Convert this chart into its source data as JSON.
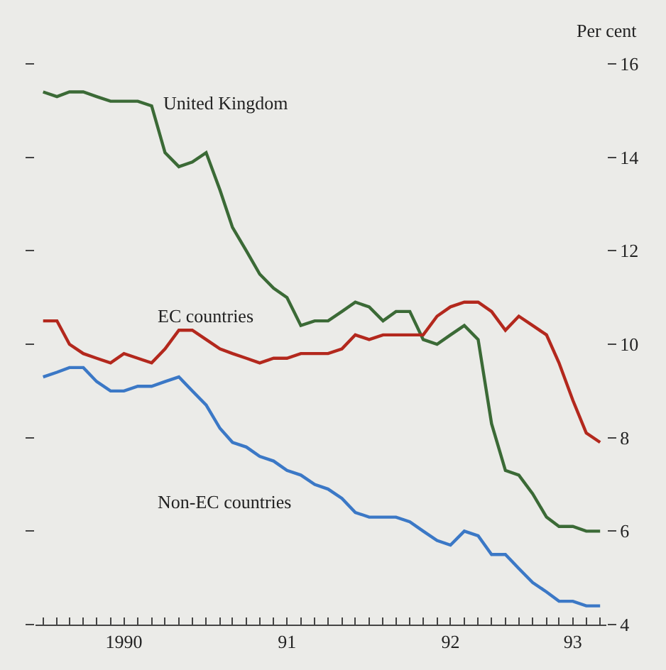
{
  "chart_data": {
    "type": "line",
    "ylabel": "Per cent",
    "x": [
      "1990-01",
      "1990-02",
      "1990-03",
      "1990-04",
      "1990-05",
      "1990-06",
      "1990-07",
      "1990-08",
      "1990-09",
      "1990-10",
      "1990-11",
      "1990-12",
      "1991-01",
      "1991-02",
      "1991-03",
      "1991-04",
      "1991-05",
      "1991-06",
      "1991-07",
      "1991-08",
      "1991-09",
      "1991-10",
      "1991-11",
      "1991-12",
      "1992-01",
      "1992-02",
      "1992-03",
      "1992-04",
      "1992-05",
      "1992-06",
      "1992-07",
      "1992-08",
      "1992-09",
      "1992-10",
      "1992-11",
      "1992-12",
      "1993-01",
      "1993-02",
      "1993-03",
      "1993-04",
      "1993-05",
      "1993-06"
    ],
    "series": [
      {
        "name": "United Kingdom",
        "color": "#3b6a36",
        "values": [
          15.4,
          15.3,
          15.4,
          15.4,
          15.3,
          15.2,
          15.2,
          15.2,
          15.1,
          14.1,
          13.8,
          13.9,
          14.1,
          13.3,
          12.5,
          12.0,
          11.5,
          11.2,
          11.0,
          10.4,
          10.5,
          10.5,
          10.7,
          10.9,
          10.8,
          10.5,
          10.7,
          10.7,
          10.1,
          10.0,
          10.2,
          10.4,
          10.1,
          8.3,
          7.3,
          7.2,
          6.8,
          6.3,
          6.1,
          6.1,
          6.0,
          6.0
        ]
      },
      {
        "name": "EC countries",
        "color": "#b3281d",
        "values": [
          10.5,
          10.5,
          10.0,
          9.8,
          9.7,
          9.6,
          9.8,
          9.7,
          9.6,
          9.9,
          10.3,
          10.3,
          10.1,
          9.9,
          9.8,
          9.7,
          9.6,
          9.7,
          9.7,
          9.8,
          9.8,
          9.8,
          9.9,
          10.2,
          10.1,
          10.2,
          10.2,
          10.2,
          10.2,
          10.6,
          10.8,
          10.9,
          10.9,
          10.7,
          10.3,
          10.6,
          10.4,
          10.2,
          9.6,
          8.8,
          8.1,
          7.9
        ]
      },
      {
        "name": "Non-EC countries",
        "color": "#3b78c6",
        "values": [
          9.3,
          9.4,
          9.5,
          9.5,
          9.2,
          9.0,
          9.0,
          9.1,
          9.1,
          9.2,
          9.3,
          9.0,
          8.7,
          8.2,
          7.9,
          7.8,
          7.6,
          7.5,
          7.3,
          7.2,
          7.0,
          6.9,
          6.7,
          6.4,
          6.3,
          6.3,
          6.3,
          6.2,
          6.0,
          5.8,
          5.7,
          6.0,
          5.9,
          5.5,
          5.5,
          5.2,
          4.9,
          4.7,
          4.5,
          4.5,
          4.4,
          4.4
        ]
      }
    ],
    "xlim": [
      "1989-12-15",
      "1993-06-15"
    ],
    "xticks": [
      {
        "value": "1990-07-01",
        "label": "1990"
      },
      {
        "value": "1991-07-01",
        "label": "91"
      },
      {
        "value": "1992-07-01",
        "label": "92"
      },
      {
        "value": "1993-04-01",
        "label": "93"
      }
    ],
    "ylim": [
      4,
      16
    ],
    "yticks": [
      4,
      6,
      8,
      10,
      12,
      14,
      16
    ],
    "grid": false,
    "legend": false,
    "marker": "none",
    "line_style": "solid"
  }
}
